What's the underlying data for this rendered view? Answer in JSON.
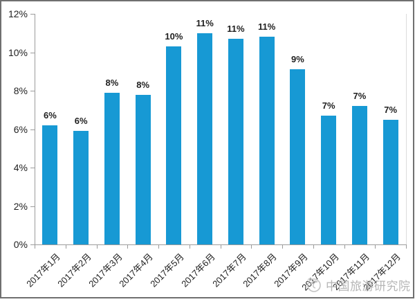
{
  "chart_data": {
    "type": "bar",
    "title": "",
    "categories": [
      "2017年1月",
      "2017年2月",
      "2017年3月",
      "2017年4月",
      "2017年5月",
      "2017年6月",
      "2017年7月",
      "2017年8月",
      "2017年9月",
      "2017年10月",
      "2017年11月",
      "2017年12月"
    ],
    "values": [
      6.2,
      5.9,
      7.9,
      7.8,
      10.3,
      11.0,
      10.7,
      10.8,
      9.1,
      6.7,
      7.2,
      6.5
    ],
    "data_labels": [
      "6%",
      "6%",
      "8%",
      "8%",
      "10%",
      "11%",
      "11%",
      "11%",
      "9%",
      "7%",
      "7%",
      "7%"
    ],
    "y_ticks": [
      "0%",
      "2%",
      "4%",
      "6%",
      "8%",
      "10%",
      "12%"
    ],
    "ylim": [
      0,
      12
    ],
    "xlabel": "",
    "ylabel": "",
    "grid": "off",
    "legend": "none",
    "bar_color": "#1799d4",
    "axis_color": "#9b9b9b",
    "plot_right_border_color": "#dcdcdc",
    "label_color": "#1f1f1f"
  },
  "watermark": {
    "text": "中国旅游研究院",
    "logo": "swirl-logo-icon",
    "color": "#b5b5b5"
  }
}
